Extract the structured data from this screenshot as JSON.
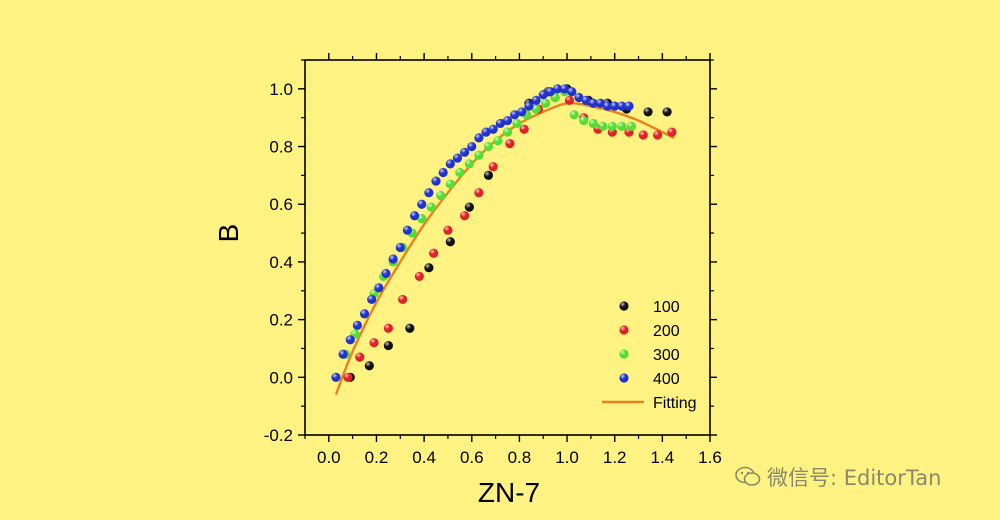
{
  "colors": {
    "background": "#FDF282",
    "fit": "#E8821E"
  },
  "watermark": {
    "text": "微信号: EditorTan",
    "icon": "wechat-icon"
  },
  "chart_data": {
    "type": "scatter",
    "xlabel": "ZN-7",
    "ylabel": "B",
    "xlim": [
      -0.1,
      1.6
    ],
    "ylim": [
      -0.2,
      1.1
    ],
    "x_ticks": [
      "0.0",
      "0.2",
      "0.4",
      "0.6",
      "0.8",
      "1.0",
      "1.2",
      "1.4",
      "1.6"
    ],
    "y_ticks": [
      "-0.2",
      "0.0",
      "0.2",
      "0.4",
      "0.6",
      "0.8",
      "1.0"
    ],
    "legend_position": "bottom-right",
    "series": [
      {
        "name": "100",
        "color": "#111111",
        "points": [
          [
            0.09,
            0.0
          ],
          [
            0.17,
            0.04
          ],
          [
            0.25,
            0.11
          ],
          [
            0.34,
            0.17
          ],
          [
            0.42,
            0.38
          ],
          [
            0.51,
            0.47
          ],
          [
            0.59,
            0.59
          ],
          [
            0.67,
            0.7
          ],
          [
            0.84,
            0.95
          ],
          [
            0.92,
            0.99
          ],
          [
            1.0,
            1.0
          ],
          [
            1.09,
            0.96
          ],
          [
            1.17,
            0.95
          ],
          [
            1.25,
            0.93
          ],
          [
            1.34,
            0.92
          ],
          [
            1.42,
            0.92
          ]
        ]
      },
      {
        "name": "200",
        "color": "#E02222",
        "points": [
          [
            0.08,
            0.0
          ],
          [
            0.13,
            0.07
          ],
          [
            0.19,
            0.12
          ],
          [
            0.25,
            0.17
          ],
          [
            0.31,
            0.27
          ],
          [
            0.38,
            0.35
          ],
          [
            0.44,
            0.43
          ],
          [
            0.5,
            0.51
          ],
          [
            0.57,
            0.56
          ],
          [
            0.63,
            0.64
          ],
          [
            0.69,
            0.73
          ],
          [
            0.76,
            0.81
          ],
          [
            0.82,
            0.86
          ],
          [
            0.88,
            0.93
          ],
          [
            0.95,
            0.97
          ],
          [
            1.01,
            0.96
          ],
          [
            1.07,
            0.9
          ],
          [
            1.13,
            0.86
          ],
          [
            1.19,
            0.85
          ],
          [
            1.26,
            0.85
          ],
          [
            1.32,
            0.84
          ],
          [
            1.38,
            0.84
          ],
          [
            1.44,
            0.85
          ]
        ]
      },
      {
        "name": "300",
        "color": "#55DD33",
        "points": [
          [
            0.03,
            0.0
          ],
          [
            0.07,
            0.08
          ],
          [
            0.11,
            0.15
          ],
          [
            0.15,
            0.22
          ],
          [
            0.19,
            0.29
          ],
          [
            0.23,
            0.35
          ],
          [
            0.27,
            0.4
          ],
          [
            0.31,
            0.45
          ],
          [
            0.35,
            0.5
          ],
          [
            0.39,
            0.55
          ],
          [
            0.43,
            0.59
          ],
          [
            0.47,
            0.63
          ],
          [
            0.51,
            0.67
          ],
          [
            0.55,
            0.71
          ],
          [
            0.59,
            0.74
          ],
          [
            0.63,
            0.77
          ],
          [
            0.67,
            0.8
          ],
          [
            0.71,
            0.82
          ],
          [
            0.75,
            0.85
          ],
          [
            0.79,
            0.88
          ],
          [
            0.83,
            0.91
          ],
          [
            0.87,
            0.93
          ],
          [
            0.91,
            0.95
          ],
          [
            0.95,
            0.97
          ],
          [
            0.99,
            0.99
          ],
          [
            1.03,
            0.91
          ],
          [
            1.07,
            0.89
          ],
          [
            1.11,
            0.88
          ],
          [
            1.15,
            0.87
          ],
          [
            1.19,
            0.87
          ],
          [
            1.23,
            0.87
          ],
          [
            1.27,
            0.87
          ]
        ]
      },
      {
        "name": "400",
        "color": "#2233CC",
        "points": [
          [
            0.03,
            0.0
          ],
          [
            0.06,
            0.08
          ],
          [
            0.09,
            0.13
          ],
          [
            0.12,
            0.18
          ],
          [
            0.15,
            0.22
          ],
          [
            0.18,
            0.27
          ],
          [
            0.21,
            0.31
          ],
          [
            0.24,
            0.36
          ],
          [
            0.27,
            0.41
          ],
          [
            0.3,
            0.45
          ],
          [
            0.33,
            0.51
          ],
          [
            0.36,
            0.56
          ],
          [
            0.39,
            0.6
          ],
          [
            0.42,
            0.64
          ],
          [
            0.45,
            0.68
          ],
          [
            0.48,
            0.71
          ],
          [
            0.51,
            0.74
          ],
          [
            0.54,
            0.76
          ],
          [
            0.57,
            0.78
          ],
          [
            0.6,
            0.8
          ],
          [
            0.63,
            0.83
          ],
          [
            0.66,
            0.85
          ],
          [
            0.69,
            0.86
          ],
          [
            0.72,
            0.88
          ],
          [
            0.75,
            0.89
          ],
          [
            0.78,
            0.91
          ],
          [
            0.81,
            0.92
          ],
          [
            0.84,
            0.94
          ],
          [
            0.87,
            0.96
          ],
          [
            0.9,
            0.98
          ],
          [
            0.93,
            0.99
          ],
          [
            0.96,
            1.0
          ],
          [
            0.99,
            1.0
          ],
          [
            1.02,
            0.99
          ],
          [
            1.05,
            0.97
          ],
          [
            1.08,
            0.96
          ],
          [
            1.11,
            0.95
          ],
          [
            1.14,
            0.95
          ],
          [
            1.17,
            0.94
          ],
          [
            1.2,
            0.94
          ],
          [
            1.23,
            0.94
          ],
          [
            1.26,
            0.94
          ]
        ]
      }
    ],
    "fit": {
      "name": "Fitting",
      "color": "#E8821E",
      "points": [
        [
          0.03,
          -0.06
        ],
        [
          0.1,
          0.09
        ],
        [
          0.2,
          0.26
        ],
        [
          0.3,
          0.4
        ],
        [
          0.4,
          0.53
        ],
        [
          0.5,
          0.64
        ],
        [
          0.6,
          0.74
        ],
        [
          0.7,
          0.82
        ],
        [
          0.8,
          0.88
        ],
        [
          0.9,
          0.92
        ],
        [
          1.0,
          0.95
        ],
        [
          1.1,
          0.94
        ],
        [
          1.2,
          0.92
        ],
        [
          1.3,
          0.89
        ],
        [
          1.4,
          0.85
        ],
        [
          1.45,
          0.83
        ]
      ]
    }
  }
}
